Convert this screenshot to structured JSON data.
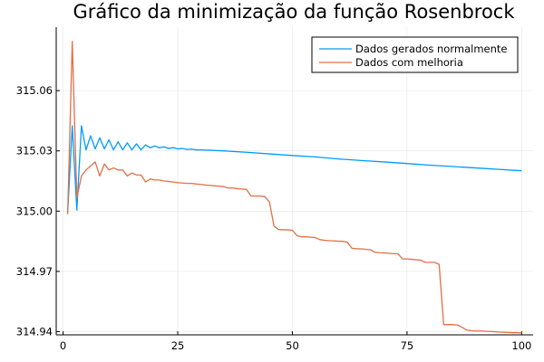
{
  "chart_data": {
    "type": "line",
    "title": "Gráfico da minimização da função Rosenbrock",
    "xlabel": "",
    "ylabel": "",
    "xlim": [
      -1.5,
      102.5
    ],
    "ylim": [
      314.9384,
      315.0916
    ],
    "xticks": [
      0,
      25,
      50,
      75,
      100
    ],
    "yticks": [
      314.94,
      314.97,
      315.0,
      315.03,
      315.06
    ],
    "ytick_labels": [
      "314.94",
      "314.97",
      "315.00",
      "315.03",
      "315.06"
    ],
    "grid": true,
    "legend_position": "top-right",
    "series": [
      {
        "name": "Dados gerados normalmente",
        "color": "#009af9",
        "x": [
          1,
          2,
          3,
          4,
          5,
          6,
          7,
          8,
          9,
          10,
          11,
          12,
          13,
          14,
          15,
          16,
          17,
          18,
          19,
          20,
          21,
          22,
          23,
          24,
          25,
          26,
          27,
          28,
          29,
          30,
          35,
          40,
          45,
          50,
          55,
          60,
          65,
          70,
          75,
          80,
          85,
          90,
          95,
          100
        ],
        "y": [
          314.9995,
          315.0425,
          315.0005,
          315.0425,
          315.0305,
          315.0375,
          315.031,
          315.0365,
          315.031,
          315.0355,
          315.0305,
          315.0345,
          315.0305,
          315.034,
          315.0305,
          315.0335,
          315.0305,
          315.033,
          315.0315,
          315.0325,
          315.0315,
          315.032,
          315.0312,
          315.0316,
          315.031,
          315.0312,
          315.0307,
          315.0309,
          315.0305,
          315.0305,
          315.03,
          315.0293,
          315.0285,
          315.0277,
          315.027,
          315.026,
          315.0252,
          315.0245,
          315.0237,
          315.0229,
          315.0222,
          315.0215,
          315.0208,
          315.0201
        ]
      },
      {
        "name": "Dados com melhoria",
        "color": "#e26f46",
        "x": [
          1,
          2,
          3,
          4,
          5,
          6,
          7,
          8,
          9,
          10,
          11,
          12,
          13,
          14,
          15,
          16,
          17,
          18,
          19,
          20,
          21,
          22,
          23,
          24,
          25,
          26,
          27,
          28,
          29,
          30,
          31,
          32,
          33,
          34,
          35,
          36,
          37,
          38,
          39,
          40,
          41,
          42,
          43,
          44,
          45,
          46,
          47,
          48,
          49,
          50,
          51,
          52,
          53,
          54,
          55,
          56,
          57,
          58,
          59,
          60,
          61,
          62,
          63,
          64,
          65,
          66,
          67,
          68,
          69,
          70,
          71,
          72,
          73,
          74,
          75,
          76,
          77,
          78,
          79,
          80,
          81,
          82,
          83,
          84,
          85,
          86,
          87,
          88,
          89,
          90,
          91,
          92,
          93,
          94,
          95,
          96,
          97,
          98,
          99,
          100
        ],
        "y": [
          314.9985,
          315.0845,
          315.0065,
          315.0175,
          315.0205,
          315.0225,
          315.0245,
          315.0175,
          315.0235,
          315.0205,
          315.0215,
          315.0205,
          315.0205,
          315.0175,
          315.019,
          315.018,
          315.018,
          315.0145,
          315.016,
          315.0155,
          315.0155,
          315.015,
          315.0148,
          315.0145,
          315.0142,
          315.014,
          315.0138,
          315.0138,
          315.0135,
          315.0133,
          315.013,
          315.0128,
          315.0126,
          315.0124,
          315.0122,
          315.0115,
          315.0115,
          315.0112,
          315.011,
          315.0108,
          315.0075,
          315.0075,
          315.0075,
          315.0072,
          315.0045,
          314.9925,
          314.9908,
          314.9907,
          314.9907,
          314.9905,
          314.9878,
          314.9872,
          314.9872,
          314.987,
          314.9868,
          314.9858,
          314.9855,
          314.9853,
          314.9852,
          314.985,
          314.985,
          314.9845,
          314.9815,
          314.9813,
          314.9812,
          314.981,
          314.9808,
          314.9795,
          314.9793,
          314.9792,
          314.979,
          314.9788,
          314.9788,
          314.9762,
          314.9762,
          314.976,
          314.9758,
          314.9756,
          314.9745,
          314.9745,
          314.9745,
          314.9735,
          314.9435,
          314.9435,
          314.9435,
          314.9433,
          314.9422,
          314.9408,
          314.9405,
          314.9403,
          314.9403,
          314.9402,
          314.9401,
          314.94,
          314.9398,
          314.9397,
          314.9396,
          314.9395,
          314.9395,
          314.9393
        ]
      }
    ]
  }
}
